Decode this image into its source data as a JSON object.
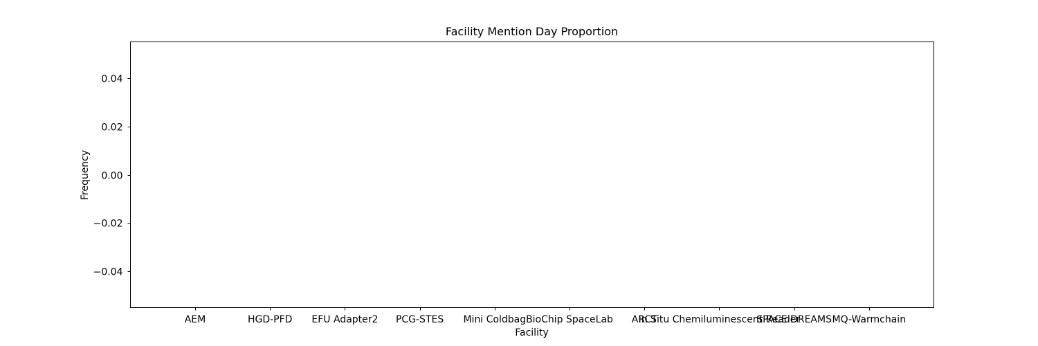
{
  "chart_data": {
    "type": "bar",
    "title": "Facility Mention Day Proportion",
    "xlabel": "Facility",
    "ylabel": "Frequency",
    "categories": [
      "AEM",
      "HGD-PFD",
      "EFU Adapter2",
      "PCG-STES",
      "Mini Coldbag",
      "BioChip SpaceLab",
      "ARCT",
      "In Situ Chemiluminescent Reader",
      "SPACE DREAMS",
      "MQ-Warmchain"
    ],
    "values": [
      0,
      0,
      0,
      0,
      0,
      0,
      0,
      0,
      0,
      0
    ],
    "ylim": [
      -0.055,
      0.055
    ],
    "yticks": [
      0.04,
      0.02,
      0.0,
      -0.02,
      -0.04
    ],
    "ytick_labels": [
      "0.04",
      "0.02",
      "0.00",
      "−0.02",
      "−0.04"
    ],
    "grid": false,
    "legend": "none"
  }
}
